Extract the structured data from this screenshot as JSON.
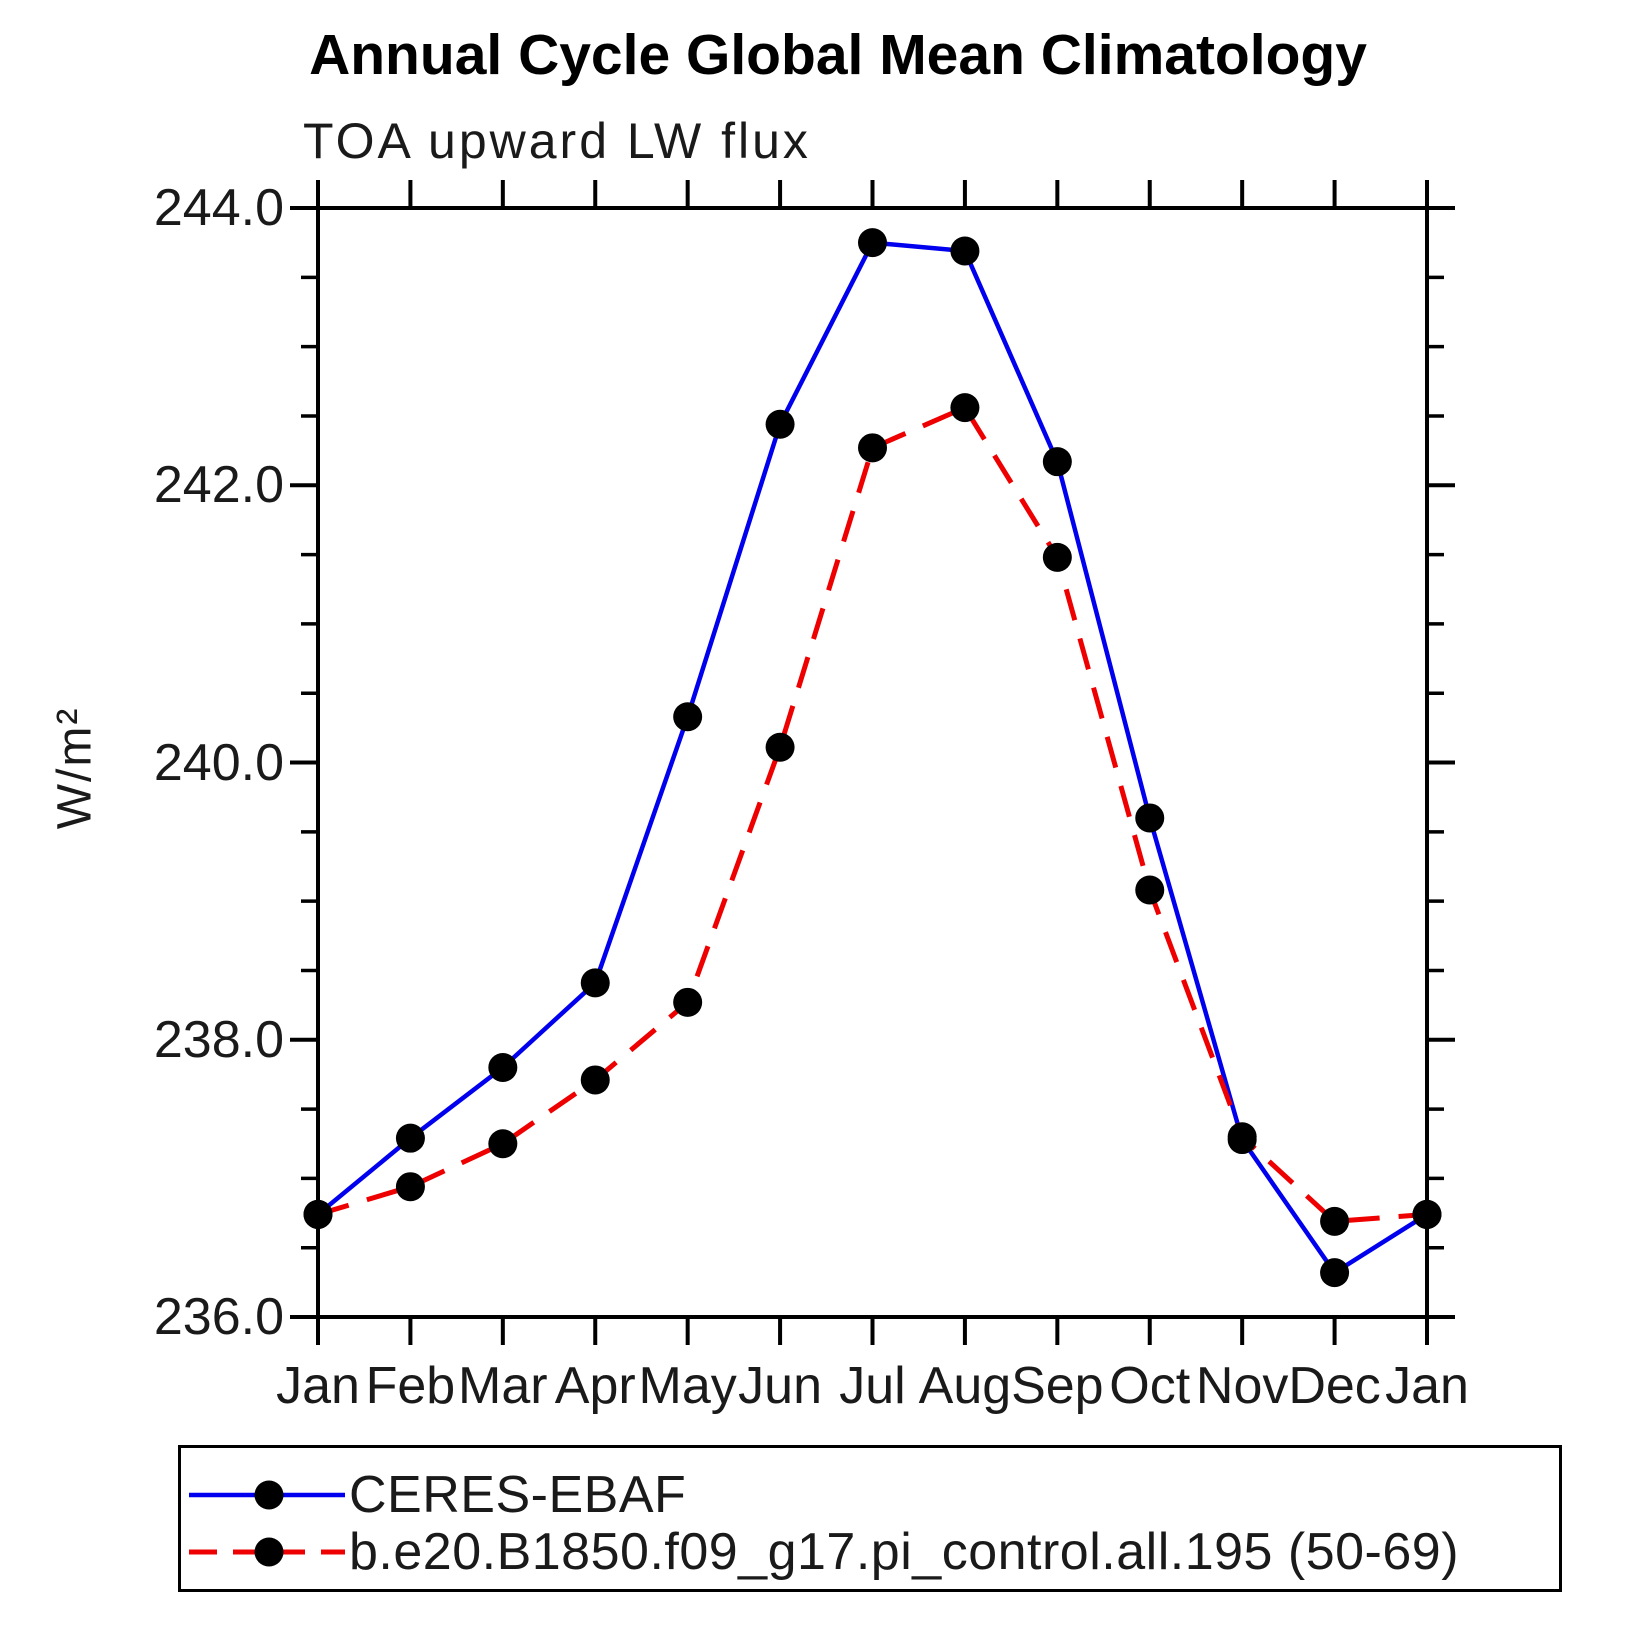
{
  "chart_data": {
    "type": "line",
    "title": "Annual Cycle Global Mean Climatology",
    "subtitle": "TOA upward LW flux",
    "xlabel": "",
    "ylabel": "W/m²",
    "x_categories": [
      "Jan",
      "Feb",
      "Mar",
      "Apr",
      "May",
      "Jun",
      "Jul",
      "Aug",
      "Sep",
      "Oct",
      "Nov",
      "Dec",
      "Jan"
    ],
    "ylim": [
      236.0,
      244.0
    ],
    "ytick_major": [
      236.0,
      238.0,
      240.0,
      242.0,
      244.0
    ],
    "ytick_major_labels": [
      "236.0",
      "238.0",
      "240.0",
      "242.0",
      "244.0"
    ],
    "ytick_minor_step": 0.5,
    "grid": false,
    "axis_color": "#000000",
    "legend_position": "bottom-left-box",
    "series": [
      {
        "name": "CERES-EBAF",
        "color": "#0000ee",
        "style": "solid",
        "marker": "filled-circle",
        "marker_color": "#000000",
        "values": [
          236.74,
          237.29,
          237.8,
          238.41,
          240.33,
          242.44,
          243.75,
          243.69,
          242.17,
          239.6,
          237.28,
          236.32,
          236.74
        ]
      },
      {
        "name": "b.e20.B1850.f09_g17.pi_control.all.195 (50-69)",
        "color": "#ee0000",
        "style": "dashed",
        "marker": "filled-circle",
        "marker_color": "#000000",
        "values": [
          236.74,
          236.94,
          237.25,
          237.71,
          238.27,
          240.11,
          242.27,
          242.56,
          241.48,
          239.08,
          237.3,
          236.69,
          236.74
        ]
      }
    ]
  }
}
